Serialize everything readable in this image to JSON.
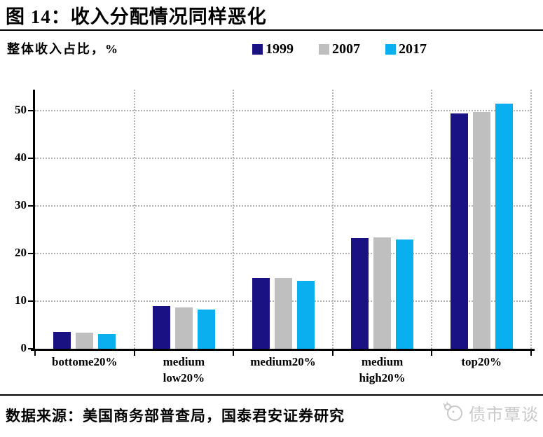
{
  "page": {
    "title": "图 14：收入分配情况同样恶化",
    "source": "数据来源：美国商务部普查局，国泰君安证券研究",
    "watermark": "债市覃谈"
  },
  "chart_data": {
    "type": "bar",
    "title": "图 14：收入分配情况同样恶化",
    "ylabel": "整体收入占比，%",
    "categories": [
      "bottome20%",
      "medium\nlow20%",
      "medium20%",
      "medium\nhigh20%",
      "top20%"
    ],
    "series": [
      {
        "name": "1999",
        "color": "#1a1283",
        "values": [
          3.6,
          8.9,
          14.9,
          23.2,
          49.4
        ]
      },
      {
        "name": "2007",
        "color": "#bfbfbf",
        "values": [
          3.4,
          8.7,
          14.8,
          23.4,
          49.7
        ]
      },
      {
        "name": "2017",
        "color": "#0aaff0",
        "values": [
          3.1,
          8.2,
          14.3,
          23.0,
          51.5
        ]
      }
    ],
    "yticks": [
      0,
      10,
      20,
      30,
      40,
      50
    ],
    "ylim": [
      0,
      54.4
    ],
    "grid": "dotted",
    "grid_color": "#b3b3b3",
    "axis_color": "#000000",
    "legend_position": "top-right"
  }
}
